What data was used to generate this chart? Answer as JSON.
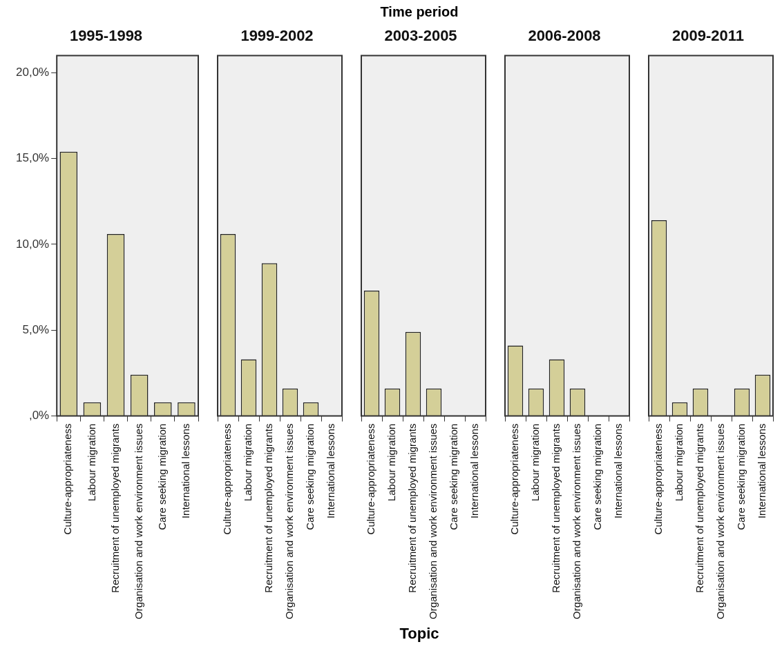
{
  "chart_data": [
    {
      "type": "bar",
      "title": "1995-1998",
      "categories": [
        "Culture-appropriateness",
        "Labour migration",
        "Recruitment of unemployed migrants",
        "Organisation and work environment issues",
        "Care seeking migration",
        "International lessons"
      ],
      "values": [
        15.4,
        0.8,
        10.6,
        2.4,
        0.8,
        0.8
      ],
      "color": "#d4cf98",
      "ylim": [
        0,
        21
      ],
      "yticks": [
        {
          "value": 0,
          "label": ",0%"
        },
        {
          "value": 5,
          "label": "5,0%"
        },
        {
          "value": 10,
          "label": "10,0%"
        },
        {
          "value": 15,
          "label": "15,0%"
        },
        {
          "value": 20,
          "label": "20,0%"
        }
      ]
    },
    {
      "type": "bar",
      "title": "1999-2002",
      "categories": [
        "Culture-appropriateness",
        "Labour migration",
        "Recruitment of unemployed migrants",
        "Organisation and work environment issues",
        "Care seeking migration",
        "International lessons"
      ],
      "values": [
        10.6,
        3.3,
        8.9,
        1.6,
        0.8,
        0
      ],
      "color": "#d4cf98",
      "ylim": [
        0,
        21
      ],
      "tick_labels": "x"
    },
    {
      "type": "bar",
      "title": "2003-2005",
      "xlabel": "Topic",
      "annotations": [
        "Time period"
      ],
      "categories": [
        "Culture-appropriateness",
        "Labour migration",
        "Recruitment of unemployed migrants",
        "Organisation and work environment issues",
        "Care seeking migration",
        "International lessons"
      ],
      "values": [
        7.3,
        1.6,
        4.9,
        1.6,
        0,
        0
      ],
      "color": "#d4cf98",
      "ylim": [
        0,
        21
      ],
      "tick_labels": "x"
    },
    {
      "type": "bar",
      "title": "2006-2008",
      "categories": [
        "Culture-appropriateness",
        "Labour migration",
        "Recruitment of unemployed migrants",
        "Organisation and work environment issues",
        "Care seeking migration",
        "International lessons"
      ],
      "values": [
        4.1,
        1.6,
        3.3,
        1.6,
        0,
        0
      ],
      "color": "#d4cf98",
      "ylim": [
        0,
        21
      ],
      "tick_labels": "x"
    },
    {
      "type": "bar",
      "title": "2009-2011",
      "categories": [
        "Culture-appropriateness",
        "Labour migration",
        "Recruitment of unemployed migrants",
        "Organisation and work environment issues",
        "Care seeking migration",
        "International lessons"
      ],
      "values": [
        11.4,
        0.8,
        1.6,
        0,
        1.6,
        2.4
      ],
      "color": "#d4cf98",
      "ylim": [
        0,
        21
      ],
      "tick_labels": "x"
    }
  ]
}
